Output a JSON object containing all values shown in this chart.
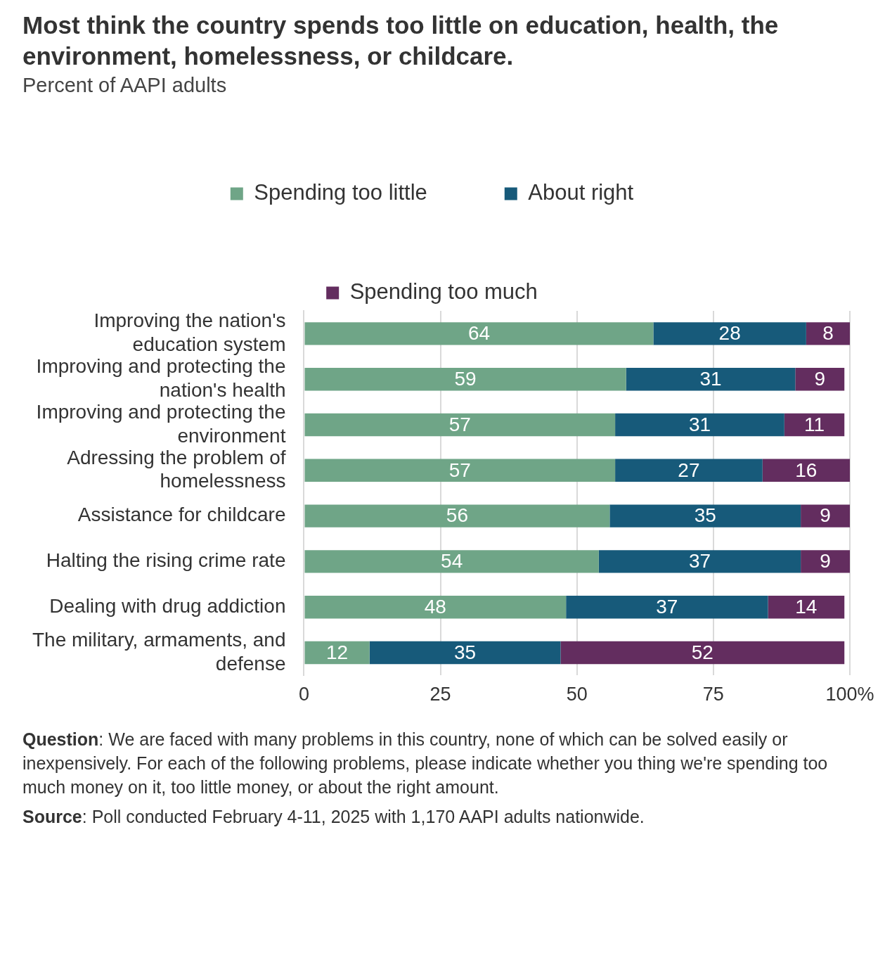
{
  "chart_data": {
    "type": "bar",
    "orientation": "horizontal",
    "stacked": true,
    "title": "Most think the country spends too little on education, health, the environment, homelessness, or childcare.",
    "subtitle": "Percent of AAPI adults",
    "categories": [
      "Improving the nation's education system",
      "Improving and protecting the nation's health",
      "Improving and protecting the environment",
      "Adressing the problem of homelessness",
      "Assistance for childcare",
      "Halting the rising crime rate",
      "Dealing with drug addiction",
      "The military, armaments, and defense"
    ],
    "series": [
      {
        "name": "Spending too little",
        "color": "#6fa587",
        "values": [
          64,
          59,
          57,
          57,
          56,
          54,
          48,
          12
        ]
      },
      {
        "name": "About right",
        "color": "#175a7a",
        "values": [
          28,
          31,
          31,
          27,
          35,
          37,
          37,
          35
        ]
      },
      {
        "name": "Spending too much",
        "color": "#632d5f",
        "values": [
          8,
          9,
          11,
          16,
          9,
          9,
          14,
          52
        ]
      }
    ],
    "xlim": [
      0,
      100
    ],
    "xticks": [
      0,
      25,
      50,
      75,
      {
        "value": 100,
        "label": "100%"
      }
    ],
    "grid": "x",
    "legend": "top",
    "data_labels": true,
    "annotations": [
      "Question: We are faced with many problems in this country, none of which can be solved easily or inexpensively. For each of the following problems, please indicate whether you thing we're spending too much money on it, too little money, or about the right amount.",
      "Source: Poll conducted February 4-11, 2025 with 1,170 AAPI adults nationwide."
    ]
  }
}
